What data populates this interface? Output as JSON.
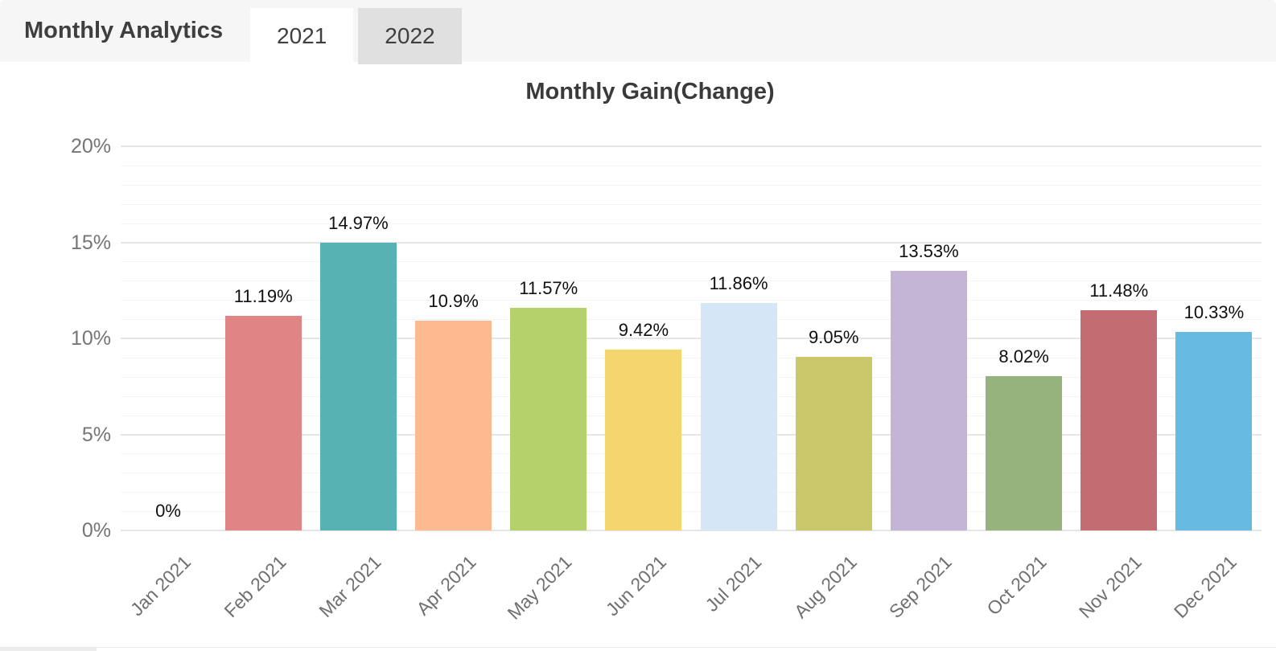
{
  "header": {
    "title": "Monthly Analytics",
    "tabs": [
      {
        "label": "2021",
        "active": true
      },
      {
        "label": "2022",
        "active": false
      }
    ]
  },
  "chart_data": {
    "type": "bar",
    "title": "Monthly Gain(Change)",
    "categories": [
      "Jan 2021",
      "Feb 2021",
      "Mar 2021",
      "Apr 2021",
      "May 2021",
      "Jun 2021",
      "Jul 2021",
      "Aug 2021",
      "Sep 2021",
      "Oct 2021",
      "Nov 2021",
      "Dec 2021"
    ],
    "values": [
      0,
      11.19,
      14.97,
      10.9,
      11.57,
      9.42,
      11.86,
      9.05,
      13.53,
      8.02,
      11.48,
      10.33
    ],
    "bar_labels": [
      "0%",
      "11.19%",
      "14.97%",
      "10.9%",
      "11.57%",
      "9.42%",
      "11.86%",
      "9.05%",
      "13.53%",
      "8.02%",
      "11.48%",
      "10.33%"
    ],
    "bar_colors": [
      null,
      "#e08486",
      "#57b2b3",
      "#fdba90",
      "#b5d16c",
      "#f5d56e",
      "#d5e6f7",
      "#cbc869",
      "#c4b5d7",
      "#97b37d",
      "#c36d72",
      "#67bbe3"
    ],
    "xlabel": "",
    "ylabel": "",
    "ylim": [
      0,
      20
    ],
    "y_ticks": [
      {
        "value": 0,
        "label": "0%"
      },
      {
        "value": 5,
        "label": "5%"
      },
      {
        "value": 10,
        "label": "10%"
      },
      {
        "value": 15,
        "label": "15%"
      },
      {
        "value": 20,
        "label": "20%"
      }
    ],
    "minor_grid_step": 1,
    "grid": true,
    "legend": "none",
    "x_tick_rotation": -45
  }
}
